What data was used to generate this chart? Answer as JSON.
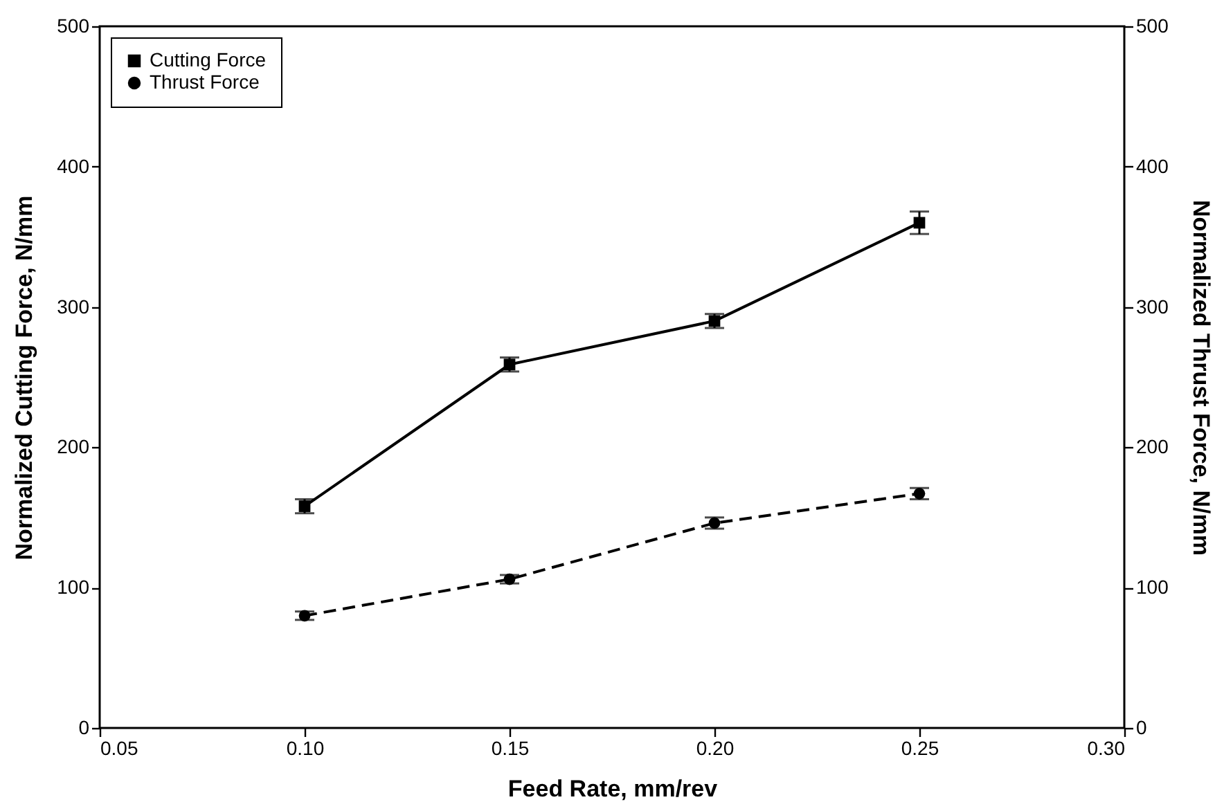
{
  "chart_data": {
    "type": "line",
    "xlabel": "Feed Rate, mm/rev",
    "ylabel": "Normalized Cutting Force, N/mm",
    "y2label": "Normalized Thrust Force, N/mm",
    "x": [
      0.1,
      0.15,
      0.2,
      0.25
    ],
    "xlim": [
      0.05,
      0.3
    ],
    "xticks": [
      {
        "value": 0.05,
        "label": "0.05"
      },
      {
        "value": 0.1,
        "label": "0.10"
      },
      {
        "value": 0.15,
        "label": "0.15"
      },
      {
        "value": 0.2,
        "label": "0.20"
      },
      {
        "value": 0.25,
        "label": "0.25"
      },
      {
        "value": 0.3,
        "label": "0.30"
      }
    ],
    "ylim": [
      0,
      500
    ],
    "yticks": [
      0,
      100,
      200,
      300,
      400,
      500
    ],
    "y2lim": [
      0,
      500
    ],
    "y2ticks": [
      0,
      100,
      200,
      300,
      400,
      500
    ],
    "series": [
      {
        "name": "Cutting Force",
        "color": "#000000",
        "values": [
          158,
          259,
          290,
          360
        ],
        "errors": [
          5,
          5,
          5,
          8
        ],
        "marker": "square",
        "line_style": "solid"
      },
      {
        "name": "Thrust Force",
        "color": "#000000",
        "values": [
          80,
          106,
          146,
          167
        ],
        "errors": [
          3,
          3,
          4,
          4
        ],
        "axis": "y2",
        "marker": "circle",
        "line_style": "dashed"
      }
    ],
    "legend": "top left",
    "grid": false
  }
}
